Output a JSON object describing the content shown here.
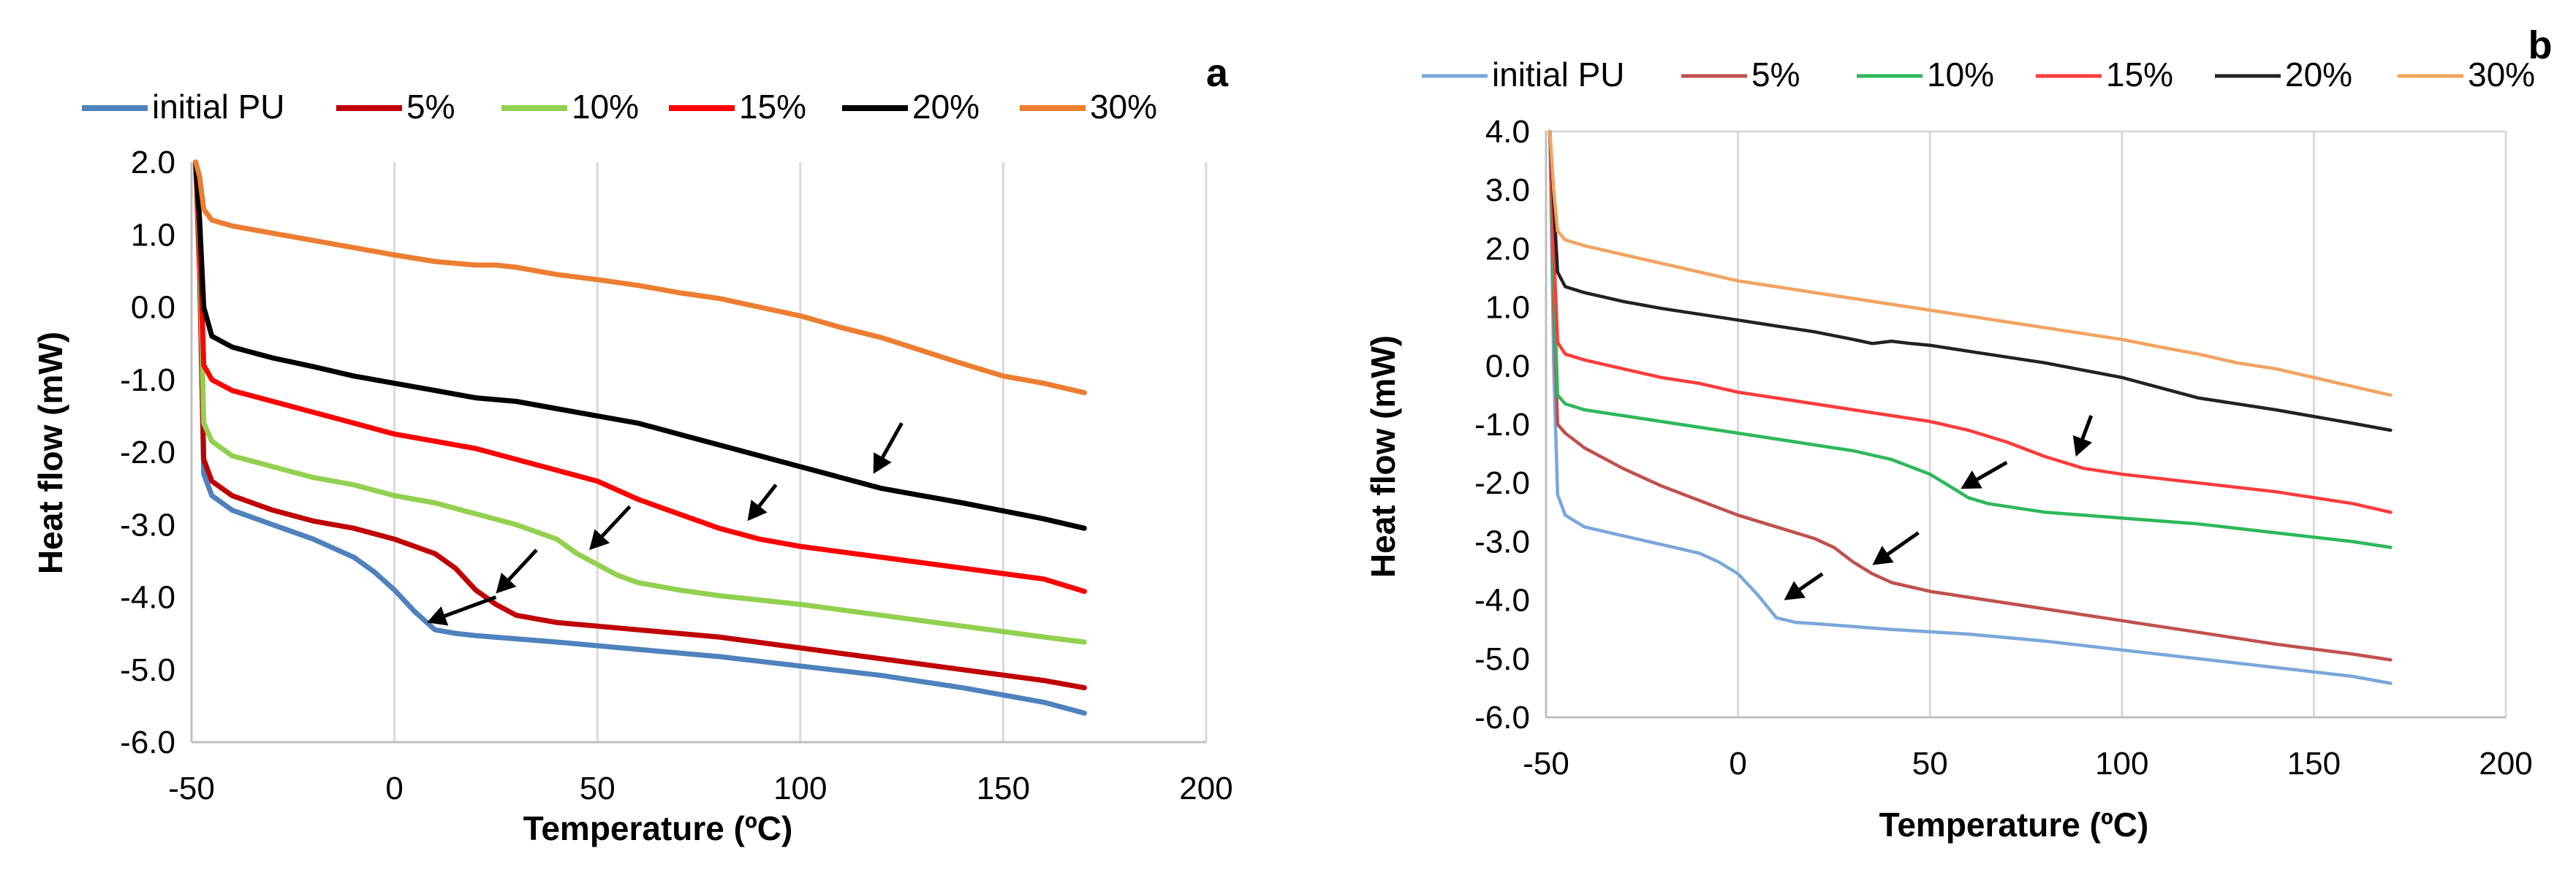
{
  "colors": {
    "a": {
      "initial PU": "#4f81bd",
      "5%": "#c00000",
      "10%": "#92d050",
      "15%": "#ff0000",
      "20%": "#000000",
      "30%": "#ed7d31"
    },
    "b": {
      "initial PU": "#7aa6db",
      "5%": "#c0504d",
      "10%": "#2db85a",
      "15%": "#ff3b3b",
      "20%": "#222222",
      "30%": "#f4a261"
    }
  },
  "chart_data": [
    {
      "type": "line",
      "panel": "a",
      "title": "",
      "xlabel": "Temperature (ºC)",
      "ylabel": "Heat flow (mW)",
      "xlim": [
        -50,
        200
      ],
      "ylim": [
        -6,
        2
      ],
      "xticks": [
        "-50",
        "0",
        "50",
        "100",
        "150",
        "200"
      ],
      "yticks": [
        "2.0",
        "1.0",
        "0.0",
        "-1.0",
        "-2.0",
        "-3.0",
        "-4.0",
        "-5.0",
        "-6.0"
      ],
      "grid": "vertical",
      "legend": "top",
      "series": [
        {
          "name": "initial PU",
          "x": [
            -49,
            -48,
            -47,
            -45,
            -40,
            -30,
            -20,
            -10,
            -5,
            0,
            5,
            10,
            15,
            20,
            40,
            60,
            80,
            100,
            120,
            140,
            160,
            170
          ],
          "y": [
            2.0,
            0.5,
            -2.3,
            -2.6,
            -2.8,
            -3.0,
            -3.2,
            -3.45,
            -3.65,
            -3.9,
            -4.2,
            -4.45,
            -4.5,
            -4.53,
            -4.62,
            -4.72,
            -4.82,
            -4.95,
            -5.08,
            -5.25,
            -5.45,
            -5.6
          ]
        },
        {
          "name": "5%",
          "x": [
            -49,
            -48,
            -47,
            -45,
            -40,
            -30,
            -20,
            -10,
            0,
            10,
            15,
            20,
            25,
            30,
            35,
            40,
            60,
            80,
            100,
            120,
            140,
            160,
            170
          ],
          "y": [
            2.0,
            0.5,
            -2.1,
            -2.4,
            -2.6,
            -2.8,
            -2.95,
            -3.05,
            -3.2,
            -3.4,
            -3.6,
            -3.9,
            -4.1,
            -4.25,
            -4.3,
            -4.35,
            -4.45,
            -4.55,
            -4.7,
            -4.85,
            -5.0,
            -5.15,
            -5.25
          ]
        },
        {
          "name": "10%",
          "x": [
            -49,
            -48,
            -47,
            -45,
            -40,
            -30,
            -20,
            -10,
            0,
            10,
            20,
            30,
            40,
            45,
            50,
            55,
            60,
            70,
            80,
            100,
            120,
            140,
            160,
            170
          ],
          "y": [
            2.0,
            0.8,
            -1.6,
            -1.85,
            -2.05,
            -2.2,
            -2.35,
            -2.45,
            -2.6,
            -2.7,
            -2.85,
            -3.0,
            -3.2,
            -3.4,
            -3.55,
            -3.7,
            -3.8,
            -3.9,
            -3.98,
            -4.1,
            -4.25,
            -4.4,
            -4.55,
            -4.62
          ]
        },
        {
          "name": "15%",
          "x": [
            -49,
            -48,
            -47,
            -45,
            -40,
            -30,
            -20,
            -10,
            0,
            10,
            20,
            30,
            40,
            50,
            60,
            70,
            80,
            90,
            100,
            120,
            140,
            160,
            170
          ],
          "y": [
            2.0,
            1.0,
            -0.8,
            -1.0,
            -1.15,
            -1.3,
            -1.45,
            -1.6,
            -1.75,
            -1.85,
            -1.95,
            -2.1,
            -2.25,
            -2.4,
            -2.65,
            -2.85,
            -3.05,
            -3.2,
            -3.3,
            -3.45,
            -3.6,
            -3.75,
            -3.92
          ]
        },
        {
          "name": "20%",
          "x": [
            -49,
            -48,
            -47,
            -45,
            -40,
            -30,
            -20,
            -10,
            0,
            10,
            20,
            30,
            40,
            50,
            60,
            70,
            80,
            90,
            100,
            110,
            120,
            140,
            160,
            170
          ],
          "y": [
            2.0,
            1.2,
            0.0,
            -0.4,
            -0.55,
            -0.7,
            -0.82,
            -0.95,
            -1.05,
            -1.15,
            -1.25,
            -1.3,
            -1.4,
            -1.5,
            -1.6,
            -1.75,
            -1.9,
            -2.05,
            -2.2,
            -2.35,
            -2.5,
            -2.7,
            -2.92,
            -3.05
          ]
        },
        {
          "name": "30%",
          "x": [
            -49,
            -48,
            -47,
            -45,
            -40,
            -30,
            -20,
            -10,
            0,
            10,
            20,
            25,
            30,
            40,
            50,
            60,
            70,
            80,
            90,
            100,
            110,
            120,
            130,
            140,
            150,
            160,
            170
          ],
          "y": [
            2.0,
            1.8,
            1.35,
            1.2,
            1.12,
            1.02,
            0.92,
            0.82,
            0.72,
            0.63,
            0.58,
            0.58,
            0.55,
            0.45,
            0.38,
            0.3,
            0.2,
            0.12,
            0.0,
            -0.12,
            -0.28,
            -0.42,
            -0.6,
            -0.78,
            -0.95,
            -1.05,
            -1.18
          ]
        }
      ]
    },
    {
      "type": "line",
      "panel": "b",
      "title": "",
      "xlabel": "Temperature (ºC)",
      "ylabel": "Heat flow (mW)",
      "xlim": [
        -50,
        200
      ],
      "ylim": [
        -6,
        4
      ],
      "xticks": [
        "-50",
        "0",
        "50",
        "100",
        "150",
        "200"
      ],
      "yticks": [
        "4.0",
        "3.0",
        "2.0",
        "1.0",
        "0.0",
        "-1.0",
        "-2.0",
        "-3.0",
        "-4.0",
        "-5.0",
        "-6.0"
      ],
      "grid": "vertical",
      "legend": "top",
      "series": [
        {
          "name": "initial PU",
          "x": [
            -49,
            -48,
            -47,
            -45,
            -40,
            -30,
            -20,
            -10,
            -5,
            0,
            5,
            10,
            15,
            20,
            40,
            60,
            80,
            100,
            120,
            140,
            160,
            170
          ],
          "y": [
            4.0,
            0.0,
            -2.2,
            -2.55,
            -2.75,
            -2.9,
            -3.05,
            -3.2,
            -3.35,
            -3.55,
            -3.9,
            -4.3,
            -4.38,
            -4.4,
            -4.5,
            -4.58,
            -4.7,
            -4.85,
            -5.0,
            -5.15,
            -5.3,
            -5.42
          ]
        },
        {
          "name": "5%",
          "x": [
            -49,
            -48,
            -47,
            -45,
            -40,
            -30,
            -20,
            -10,
            0,
            10,
            20,
            25,
            30,
            35,
            40,
            50,
            60,
            80,
            100,
            120,
            140,
            160,
            170
          ],
          "y": [
            4.0,
            1.0,
            -1.0,
            -1.15,
            -1.4,
            -1.75,
            -2.05,
            -2.3,
            -2.55,
            -2.75,
            -2.95,
            -3.1,
            -3.35,
            -3.55,
            -3.7,
            -3.85,
            -3.95,
            -4.15,
            -4.35,
            -4.55,
            -4.75,
            -4.92,
            -5.02
          ]
        },
        {
          "name": "10%",
          "x": [
            -49,
            -48,
            -47,
            -45,
            -40,
            -30,
            -20,
            -10,
            0,
            10,
            20,
            30,
            40,
            50,
            55,
            60,
            65,
            70,
            80,
            100,
            120,
            140,
            160,
            170
          ],
          "y": [
            4.0,
            1.5,
            -0.5,
            -0.65,
            -0.75,
            -0.85,
            -0.95,
            -1.05,
            -1.15,
            -1.25,
            -1.35,
            -1.45,
            -1.6,
            -1.85,
            -2.05,
            -2.25,
            -2.35,
            -2.4,
            -2.5,
            -2.6,
            -2.7,
            -2.85,
            -3.0,
            -3.1
          ]
        },
        {
          "name": "15%",
          "x": [
            -49,
            -48,
            -47,
            -45,
            -40,
            -30,
            -20,
            -10,
            0,
            10,
            20,
            30,
            40,
            50,
            60,
            70,
            80,
            90,
            100,
            120,
            140,
            160,
            170
          ],
          "y": [
            4.0,
            2.0,
            0.4,
            0.2,
            0.1,
            -0.05,
            -0.2,
            -0.3,
            -0.45,
            -0.55,
            -0.65,
            -0.75,
            -0.85,
            -0.95,
            -1.1,
            -1.3,
            -1.55,
            -1.75,
            -1.85,
            -2.0,
            -2.15,
            -2.35,
            -2.5
          ]
        },
        {
          "name": "20%",
          "x": [
            -49,
            -48,
            -47,
            -45,
            -40,
            -30,
            -20,
            -10,
            0,
            10,
            20,
            30,
            35,
            40,
            45,
            50,
            60,
            70,
            80,
            100,
            120,
            125,
            140,
            160,
            170
          ],
          "y": [
            4.0,
            2.8,
            1.6,
            1.35,
            1.25,
            1.1,
            0.98,
            0.88,
            0.78,
            0.68,
            0.58,
            0.45,
            0.38,
            0.42,
            0.38,
            0.35,
            0.25,
            0.15,
            0.05,
            -0.2,
            -0.55,
            -0.6,
            -0.75,
            -0.98,
            -1.1
          ]
        },
        {
          "name": "30%",
          "x": [
            -49,
            -48,
            -47,
            -45,
            -40,
            -30,
            -20,
            -10,
            0,
            10,
            20,
            30,
            40,
            50,
            60,
            70,
            80,
            90,
            100,
            110,
            120,
            130,
            140,
            150,
            160,
            170
          ],
          "y": [
            4.0,
            3.0,
            2.3,
            2.15,
            2.05,
            1.9,
            1.75,
            1.6,
            1.45,
            1.35,
            1.25,
            1.15,
            1.05,
            0.95,
            0.85,
            0.75,
            0.65,
            0.55,
            0.45,
            0.32,
            0.2,
            0.05,
            -0.05,
            -0.2,
            -0.35,
            -0.5
          ]
        }
      ]
    }
  ],
  "legend": [
    "initial PU",
    "5%",
    "10%",
    "15%",
    "20%",
    "30%"
  ],
  "panels": {
    "a": {
      "letter": "a",
      "xlabel": "Temperature (ºC)",
      "ylabel": "Heat flow (mW)"
    },
    "b": {
      "letter": "b",
      "xlabel": "Temperature (ºC)",
      "ylabel": "Heat flow (mW)"
    }
  },
  "annotations": {
    "a": [
      {
        "target": "initial PU",
        "tip": [
          8,
          -4.35
        ],
        "from": [
          25,
          -4.0
        ]
      },
      {
        "target": "5%",
        "tip": [
          25,
          -3.95
        ],
        "from": [
          35,
          -3.35
        ]
      },
      {
        "target": "10%",
        "tip": [
          48,
          -3.35
        ],
        "from": [
          58,
          -2.75
        ]
      },
      {
        "target": "15%",
        "tip": [
          87,
          -2.95
        ],
        "from": [
          94,
          -2.45
        ]
      },
      {
        "target": "20%",
        "tip": [
          118,
          -2.3
        ],
        "from": [
          125,
          -1.6
        ]
      }
    ],
    "b": [
      {
        "target": "initial PU",
        "tip": [
          12,
          -4.0
        ],
        "from": [
          22,
          -3.55
        ]
      },
      {
        "target": "5%",
        "tip": [
          35,
          -3.4
        ],
        "from": [
          47,
          -2.85
        ]
      },
      {
        "target": "10%",
        "tip": [
          58,
          -2.1
        ],
        "from": [
          70,
          -1.65
        ]
      },
      {
        "target": "15%",
        "tip": [
          88,
          -1.55
        ],
        "from": [
          92,
          -0.85
        ]
      }
    ]
  }
}
